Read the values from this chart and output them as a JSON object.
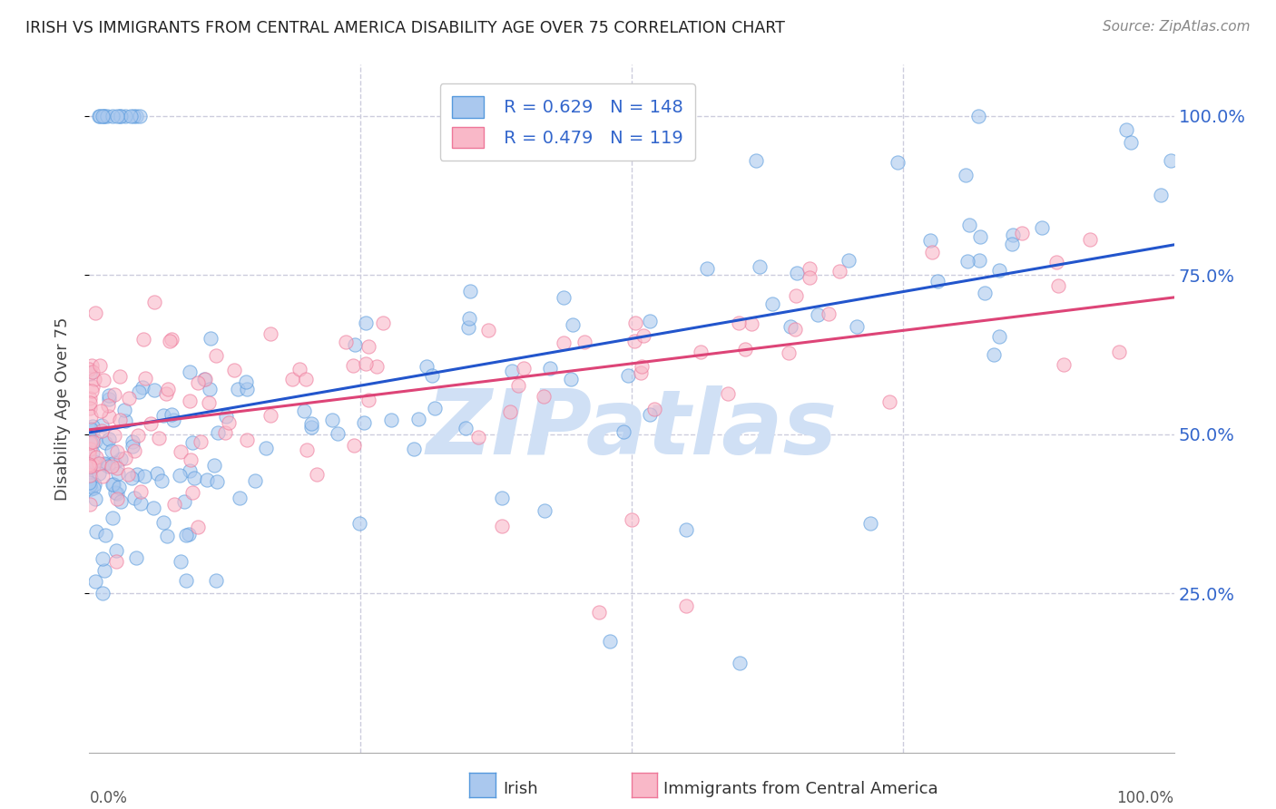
{
  "title": "IRISH VS IMMIGRANTS FROM CENTRAL AMERICA DISABILITY AGE OVER 75 CORRELATION CHART",
  "source": "Source: ZipAtlas.com",
  "ylabel": "Disability Age Over 75",
  "ytick_labels": [
    "25.0%",
    "50.0%",
    "75.0%",
    "100.0%"
  ],
  "ytick_values": [
    0.25,
    0.5,
    0.75,
    1.0
  ],
  "legend_label1": "Irish",
  "legend_label2": "Immigrants from Central America",
  "R1": 0.629,
  "N1": 148,
  "R2": 0.479,
  "N2": 119,
  "color_irish_fill": "#aac8ee",
  "color_irish_edge": "#5599dd",
  "color_central_fill": "#f9b8c8",
  "color_central_edge": "#ee7799",
  "color_text_blue": "#3366cc",
  "color_line_irish": "#2255cc",
  "color_line_central": "#dd4477",
  "background_color": "#ffffff",
  "grid_color": "#ccccdd",
  "watermark_text": "ZIPatlas",
  "watermark_color": "#d0e0f5",
  "seed": 42,
  "xlim": [
    0.0,
    1.0
  ],
  "ylim": [
    0.0,
    1.08
  ],
  "trend_irish_intercept": 0.42,
  "trend_irish_slope": 0.5,
  "trend_central_intercept": 0.515,
  "trend_central_slope": 0.255
}
